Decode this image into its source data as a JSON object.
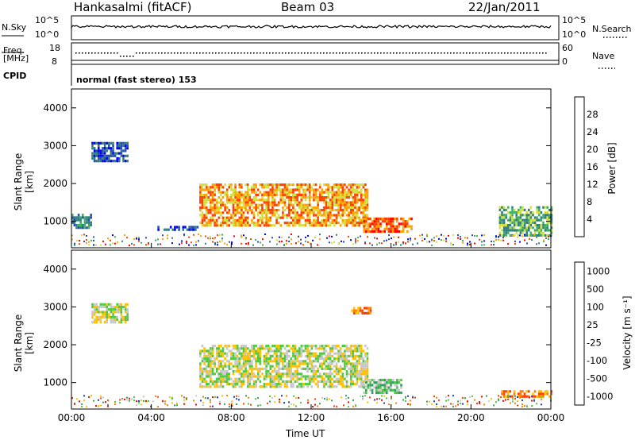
{
  "header": {
    "station": "Hankasalmi (fitACF)",
    "beam": "Beam 03",
    "date": "22/Jan/2011"
  },
  "nsky_panel": {
    "left_label": "N.Sky",
    "left_ticks": [
      "10^5",
      "10^0"
    ],
    "right_ticks": [
      "10^5",
      "10^0"
    ],
    "right_label": "N.Search"
  },
  "freq_panel": {
    "left_label_line1": "Freq.",
    "left_label_line2": "[MHz]",
    "left_ticks": [
      "18",
      "8"
    ],
    "right_ticks": [
      "60",
      "0"
    ],
    "right_label": "Nave"
  },
  "cpid_panel": {
    "label": "CPID",
    "mode_text": "normal (fast stereo) 153"
  },
  "colors": {
    "power_scale": [
      "#0000ff",
      "#2a4db0",
      "#2f7f80",
      "#3fb060",
      "#d0e040",
      "#ffa000",
      "#ff4000",
      "#ff0000"
    ],
    "velocity_scale": [
      "#1e3cc8",
      "#30a060",
      "#50c840",
      "#c8c8c8",
      "#ffc000",
      "#ff8000",
      "#ff4000",
      "#ff0000"
    ]
  },
  "chart_data": [
    {
      "type": "heatmap",
      "quantity": "Power",
      "ylabel": "Slant Range [km]",
      "yticks": [
        "1000",
        "2000",
        "3000",
        "4000"
      ],
      "ylim": [
        300,
        4500
      ],
      "xlim_hours": [
        0,
        24
      ],
      "colorbar": {
        "label": "Power [dB]",
        "ticks": [
          "4",
          "8",
          "12",
          "16",
          "20",
          "24",
          "28"
        ],
        "range": [
          0,
          32
        ]
      },
      "echo_regions": [
        {
          "start_h": 1.0,
          "end_h": 2.8,
          "range_min_km": 2600,
          "range_max_km": 3100,
          "level": 1
        },
        {
          "start_h": 0.0,
          "end_h": 1.0,
          "range_min_km": 850,
          "range_max_km": 1200,
          "level": 2
        },
        {
          "start_h": 4.2,
          "end_h": 6.3,
          "range_min_km": 800,
          "range_max_km": 880,
          "level": 1
        },
        {
          "start_h": 6.4,
          "end_h": 14.8,
          "range_min_km": 900,
          "range_max_km": 2000,
          "level": 5
        },
        {
          "start_h": 14.6,
          "end_h": 17.0,
          "range_min_km": 700,
          "range_max_km": 1100,
          "level": 6
        },
        {
          "start_h": 21.4,
          "end_h": 24.0,
          "range_min_km": 650,
          "range_max_km": 1400,
          "level": 3
        }
      ]
    },
    {
      "type": "heatmap",
      "quantity": "Velocity",
      "ylabel": "Slant Range [km]",
      "yticks": [
        "1000",
        "2000",
        "3000",
        "4000"
      ],
      "ylim": [
        300,
        4500
      ],
      "xlabel": "Time UT",
      "xticks": [
        "00:00",
        "04:00",
        "08:00",
        "12:00",
        "16:00",
        "20:00",
        "00:00"
      ],
      "xlim_hours": [
        0,
        24
      ],
      "colorbar": {
        "label": "Velocity [m s⁻¹]",
        "ticks": [
          "1000",
          "500",
          "100",
          "25",
          "-25",
          "-100",
          "-500",
          "-1000"
        ]
      },
      "echo_regions": [
        {
          "start_h": 1.0,
          "end_h": 2.8,
          "range_min_km": 2600,
          "range_max_km": 3100,
          "level": 3
        },
        {
          "start_h": 6.4,
          "end_h": 14.8,
          "range_min_km": 900,
          "range_max_km": 2000,
          "level": 3
        },
        {
          "start_h": 14.6,
          "end_h": 16.5,
          "range_min_km": 700,
          "range_max_km": 1100,
          "level": 2
        },
        {
          "start_h": 14.0,
          "end_h": 15.0,
          "range_min_km": 2800,
          "range_max_km": 3000,
          "level": 5
        },
        {
          "start_h": 21.5,
          "end_h": 24.0,
          "range_min_km": 650,
          "range_max_km": 800,
          "level": 5
        }
      ]
    }
  ]
}
